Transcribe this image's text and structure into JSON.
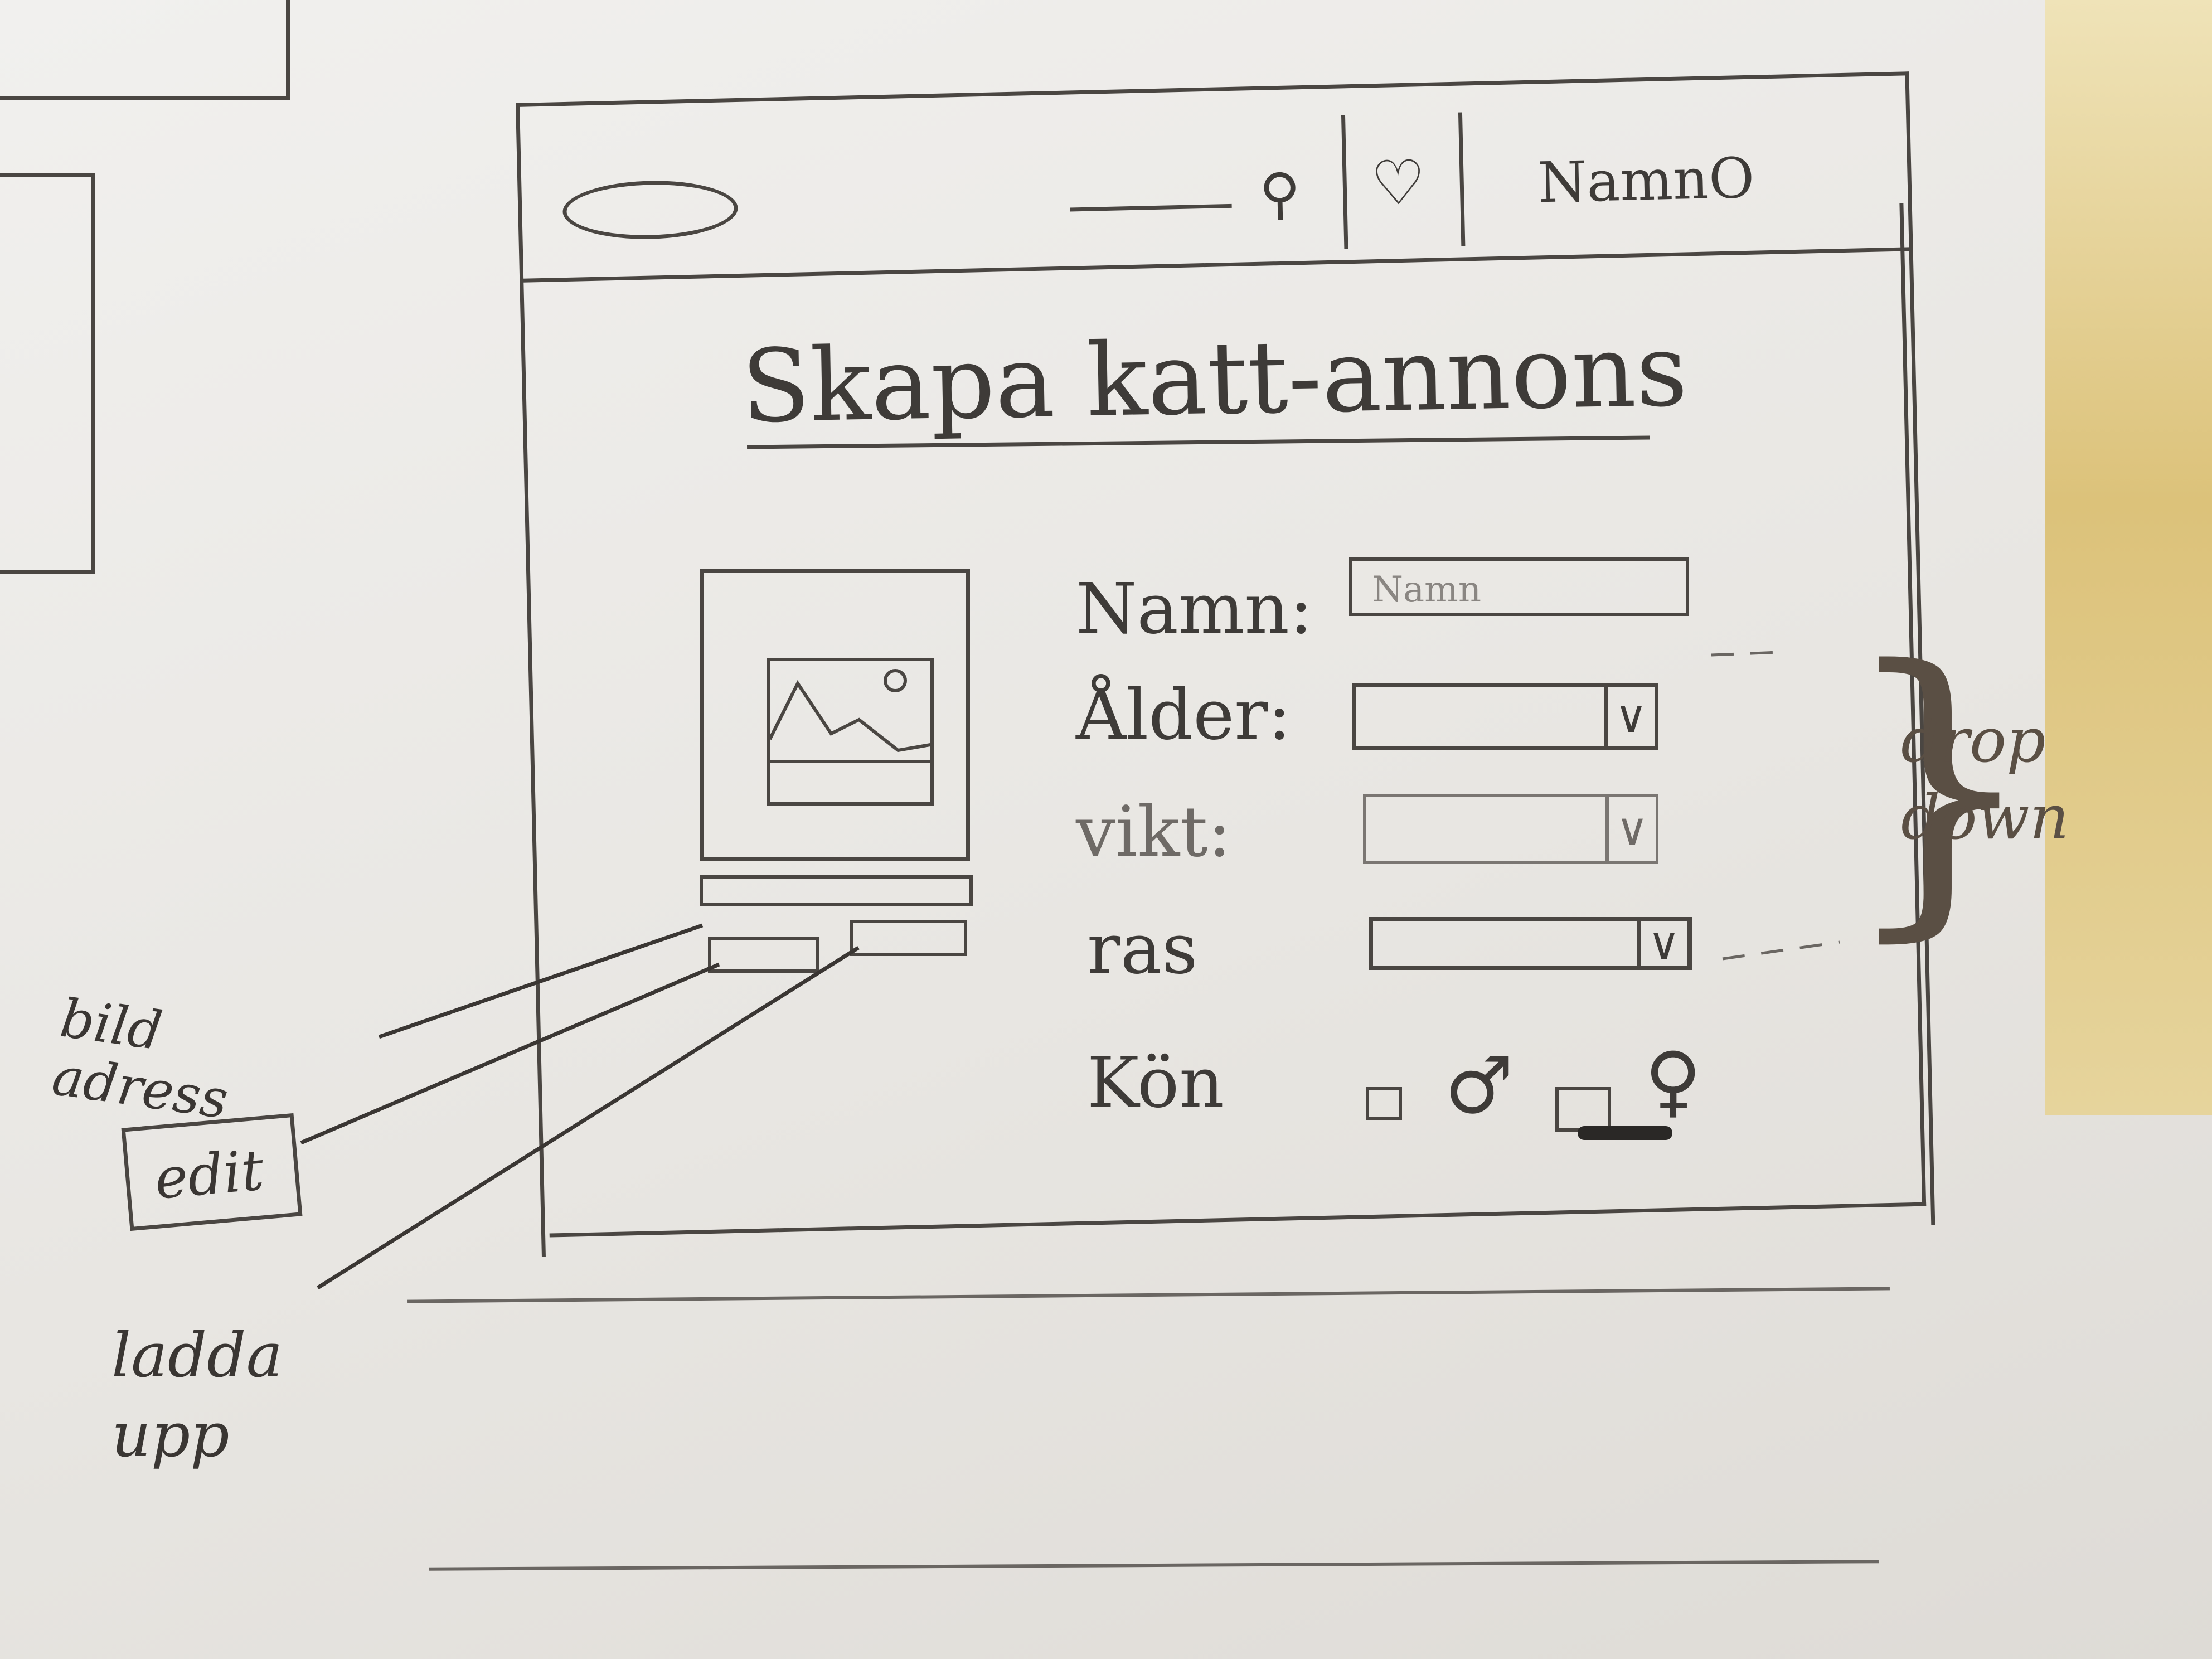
{
  "header": {
    "logo": "logo-oval",
    "search_icon": "search-icon",
    "favorites_icon": "heart-icon",
    "user_name": "NamnO"
  },
  "page": {
    "title": "Skapa katt-annons"
  },
  "form": {
    "name_label": "Namn:",
    "name_placeholder": "Namn",
    "age_label": "Ålder:",
    "weight_label": "vikt:",
    "breed_label": "ras",
    "gender_label": "Kön",
    "gender_male_symbol": "♂",
    "gender_female_symbol": "♀"
  },
  "annotations": {
    "dropdown_note": "drop down",
    "image_address_note": "bild adress",
    "edit_note": "edit",
    "upload_note": "ladda upp"
  }
}
